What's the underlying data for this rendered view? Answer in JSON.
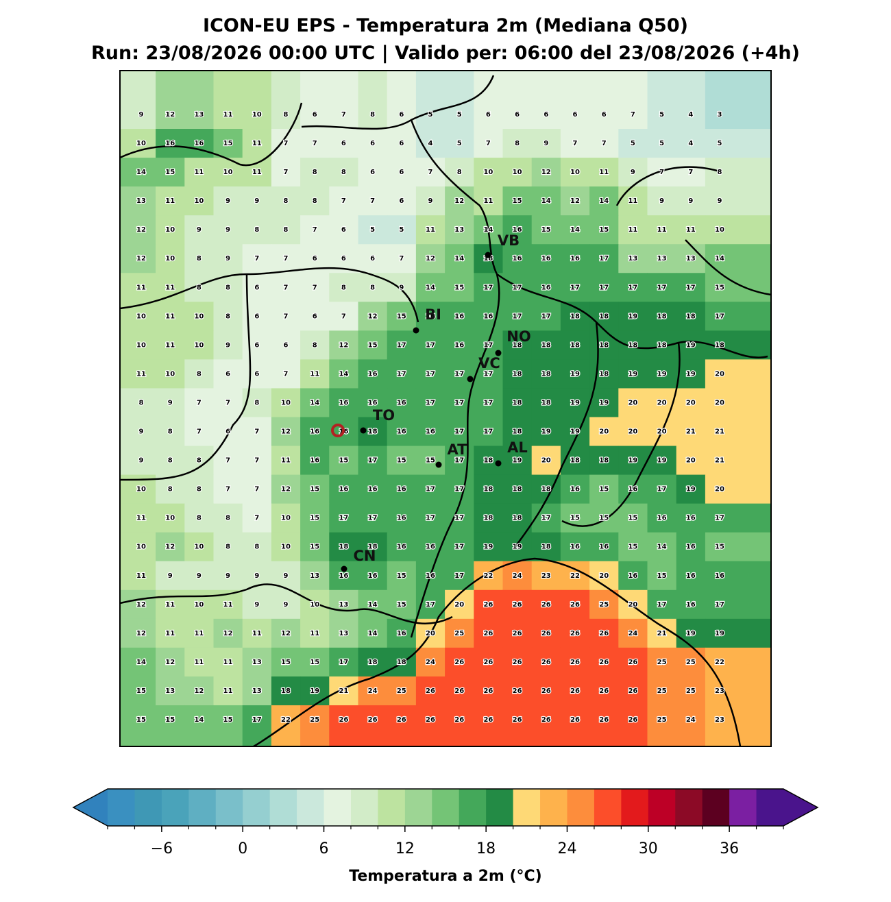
{
  "title": [
    "ICON-EU EPS - Temperatura 2m (Mediana Q50)",
    "Run: 23/08/2026 00:00 UTC | Valido per: 06:00 del 23/08/2026 (+4h)"
  ],
  "grid": {
    "values": [
      [
        9,
        12,
        13,
        11,
        10,
        8,
        6,
        7,
        8,
        6,
        5,
        5,
        6,
        6,
        6,
        6,
        6,
        7,
        5,
        4,
        3
      ],
      [
        10,
        16,
        16,
        15,
        11,
        7,
        7,
        6,
        6,
        6,
        4,
        5,
        7,
        8,
        9,
        7,
        7,
        5,
        5,
        4,
        5
      ],
      [
        14,
        15,
        11,
        10,
        11,
        7,
        8,
        8,
        6,
        6,
        7,
        8,
        10,
        10,
        12,
        10,
        11,
        9,
        7,
        7,
        8
      ],
      [
        13,
        11,
        10,
        9,
        9,
        8,
        8,
        7,
        7,
        6,
        9,
        12,
        11,
        15,
        14,
        12,
        14,
        11,
        9,
        9,
        9
      ],
      [
        12,
        10,
        9,
        9,
        8,
        8,
        7,
        6,
        5,
        5,
        11,
        13,
        14,
        16,
        15,
        14,
        15,
        11,
        11,
        11,
        10
      ],
      [
        12,
        10,
        8,
        9,
        7,
        7,
        6,
        6,
        6,
        7,
        12,
        14,
        18,
        16,
        16,
        16,
        17,
        13,
        13,
        13,
        14
      ],
      [
        11,
        11,
        8,
        8,
        6,
        7,
        7,
        8,
        8,
        9,
        14,
        15,
        17,
        17,
        16,
        17,
        17,
        17,
        17,
        17,
        15
      ],
      [
        10,
        11,
        10,
        8,
        6,
        7,
        6,
        7,
        12,
        15,
        16,
        16,
        16,
        17,
        17,
        18,
        18,
        19,
        18,
        18,
        17
      ],
      [
        10,
        11,
        10,
        9,
        6,
        6,
        8,
        12,
        15,
        17,
        17,
        16,
        17,
        18,
        18,
        18,
        18,
        18,
        18,
        19,
        18
      ],
      [
        11,
        10,
        8,
        6,
        6,
        7,
        11,
        14,
        16,
        17,
        17,
        17,
        17,
        18,
        18,
        19,
        18,
        19,
        19,
        19,
        20
      ],
      [
        8,
        9,
        7,
        7,
        8,
        10,
        14,
        16,
        16,
        16,
        17,
        17,
        17,
        18,
        18,
        19,
        19,
        20,
        20,
        20,
        20
      ],
      [
        9,
        8,
        7,
        6,
        7,
        12,
        16,
        16,
        18,
        16,
        16,
        17,
        17,
        18,
        19,
        19,
        20,
        20,
        20,
        21,
        21
      ],
      [
        9,
        8,
        8,
        7,
        7,
        11,
        16,
        15,
        17,
        15,
        15,
        17,
        18,
        19,
        20,
        18,
        18,
        19,
        19,
        20,
        21
      ],
      [
        10,
        8,
        8,
        7,
        7,
        12,
        15,
        16,
        16,
        16,
        17,
        17,
        18,
        18,
        18,
        16,
        15,
        16,
        17,
        19,
        20
      ],
      [
        11,
        10,
        8,
        8,
        7,
        10,
        15,
        17,
        17,
        16,
        17,
        17,
        18,
        18,
        17,
        15,
        15,
        15,
        16,
        16,
        17
      ],
      [
        10,
        12,
        10,
        8,
        8,
        10,
        15,
        18,
        18,
        16,
        16,
        17,
        19,
        19,
        18,
        16,
        16,
        15,
        14,
        16,
        15
      ],
      [
        11,
        9,
        9,
        9,
        9,
        9,
        13,
        16,
        16,
        15,
        16,
        17,
        22,
        24,
        23,
        22,
        20,
        16,
        15,
        16,
        16
      ],
      [
        12,
        11,
        10,
        11,
        9,
        9,
        10,
        13,
        14,
        15,
        17,
        20,
        26,
        26,
        26,
        26,
        25,
        20,
        17,
        16,
        17
      ],
      [
        12,
        11,
        11,
        12,
        11,
        12,
        11,
        13,
        14,
        16,
        20,
        25,
        26,
        26,
        26,
        26,
        26,
        24,
        21,
        19,
        19
      ],
      [
        14,
        12,
        11,
        11,
        13,
        15,
        15,
        17,
        18,
        18,
        24,
        26,
        26,
        26,
        26,
        26,
        26,
        26,
        25,
        25,
        22
      ],
      [
        15,
        13,
        12,
        11,
        13,
        18,
        19,
        21,
        24,
        25,
        26,
        26,
        26,
        26,
        26,
        26,
        26,
        26,
        25,
        25,
        23
      ],
      [
        15,
        15,
        14,
        15,
        17,
        22,
        25,
        26,
        26,
        26,
        26,
        26,
        26,
        26,
        26,
        26,
        26,
        26,
        25,
        24,
        23
      ]
    ]
  },
  "cities": [
    "VB",
    "BI",
    "NO",
    "VC",
    "TO",
    "AT",
    "AL",
    "CN"
  ],
  "colorbar": {
    "label": "Temperatura a 2m (°C)",
    "levels": [
      -10,
      -8,
      -6,
      -4,
      -2,
      0,
      2,
      4,
      6,
      8,
      10,
      12,
      14,
      16,
      18,
      20,
      22,
      24,
      26,
      28,
      30,
      32,
      34,
      36,
      38,
      40
    ],
    "colors": [
      "#3a90c0",
      "#3f98b5",
      "#4aa3ba",
      "#5fafc2",
      "#7abfca",
      "#95cfd0",
      "#b0ddd6",
      "#cbe8dc",
      "#e4f3e0",
      "#d2ecc8",
      "#bde3a0",
      "#9dd594",
      "#74c476",
      "#44a85a",
      "#238b45",
      "#fed976",
      "#feb24c",
      "#fd8d3c",
      "#fc4e2a",
      "#e31a1c",
      "#bd0026",
      "#8c0a26",
      "#5c0020",
      "#7b1fa2",
      "#4a148c"
    ],
    "under_color": "#3182bd",
    "over_color": "#4a148c",
    "ticks": [
      {
        "value": -6,
        "label": "−6"
      },
      0,
      6,
      12,
      18,
      24,
      30,
      36
    ]
  }
}
